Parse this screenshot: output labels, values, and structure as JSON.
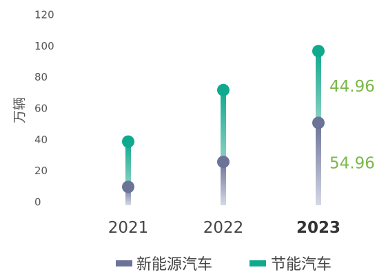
{
  "chart_data": {
    "type": "line",
    "title": "",
    "xlabel": "",
    "ylabel": "万辆",
    "ylim": [
      0,
      120
    ],
    "yticks": [
      "0",
      "20",
      "40",
      "60",
      "80",
      "100",
      "120"
    ],
    "categories": [
      "2021",
      "2022",
      "2023"
    ],
    "highlight_category": "2023",
    "grid": false,
    "legend_position": "bottom",
    "series": [
      {
        "name": "新能源汽车",
        "color": "#6b7397",
        "values": [
          10,
          26,
          51
        ]
      },
      {
        "name": "节能汽车",
        "color": "#0fa98e",
        "values": [
          39,
          72,
          97
        ]
      }
    ],
    "annotations": [
      {
        "category": "2023",
        "series": "节能汽车",
        "text": "44.96",
        "color": "#7bb84a"
      },
      {
        "category": "2023",
        "series": "新能源汽车",
        "text": "54.96",
        "color": "#7bb84a"
      }
    ]
  }
}
